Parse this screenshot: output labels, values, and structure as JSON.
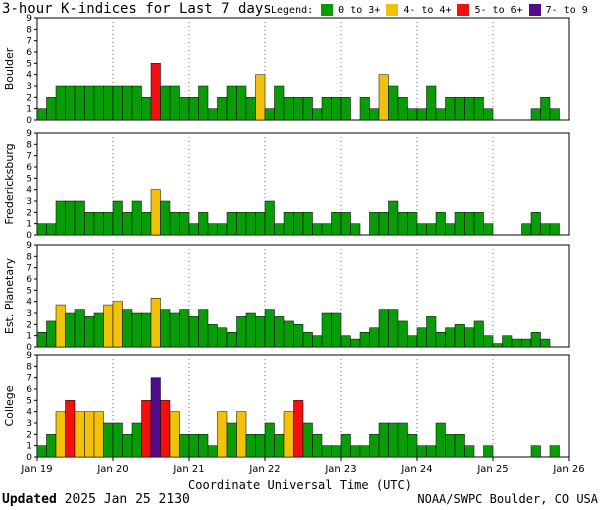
{
  "header": {
    "title": "3-hour K-indices for Last 7 days",
    "legend_label": "Legend:"
  },
  "legend": [
    {
      "label": "0 to 3+",
      "color": "#089c08"
    },
    {
      "label": "4- to 4+",
      "color": "#f2c109"
    },
    {
      "label": "5- to 6+",
      "color": "#f01010"
    },
    {
      "label": "7- to 9",
      "color": "#520b8c"
    }
  ],
  "footer": {
    "updated_label": "Updated",
    "updated_value": " 2025 Jan 25 2130",
    "credit": "NOAA/SWPC Boulder, CO USA"
  },
  "chart_data": {
    "type": "bar",
    "xlabel": "Coordinate Universal Time (UTC)",
    "x_ticks": [
      "Jan 19",
      "Jan 20",
      "Jan 21",
      "Jan 22",
      "Jan 23",
      "Jan 24",
      "Jan 25",
      "Jan 26"
    ],
    "ylim": [
      0,
      9
    ],
    "y_ticks": [
      0,
      1,
      2,
      3,
      4,
      5,
      6,
      7,
      8,
      9
    ],
    "grid": "vertical dotted at day boundaries",
    "bins_per_day": 8,
    "panels": [
      {
        "ylabel": "Boulder",
        "values": [
          1,
          2,
          3,
          3,
          3,
          3,
          3,
          3,
          3,
          3,
          3,
          2,
          5,
          3,
          3,
          2,
          2,
          3,
          1,
          2,
          3,
          3,
          2,
          4,
          1,
          3,
          2,
          2,
          2,
          1,
          2,
          2,
          2,
          0,
          2,
          1,
          4,
          3,
          2,
          1,
          1,
          3,
          1,
          2,
          2,
          2,
          2,
          1,
          0,
          0,
          0,
          0,
          1,
          2,
          1,
          0
        ]
      },
      {
        "ylabel": "Fredericksburg",
        "values": [
          1,
          1,
          3,
          3,
          3,
          2,
          2,
          2,
          3,
          2,
          3,
          2,
          4,
          3,
          2,
          2,
          1,
          2,
          1,
          1,
          2,
          2,
          2,
          2,
          3,
          1,
          2,
          2,
          2,
          1,
          1,
          2,
          2,
          1,
          0,
          2,
          2,
          3,
          2,
          2,
          1,
          1,
          2,
          1,
          2,
          2,
          2,
          1,
          0,
          0,
          0,
          1,
          2,
          1,
          1,
          0
        ]
      },
      {
        "ylabel": "Est. Planetary",
        "values": [
          1.3,
          2.3,
          3.7,
          3,
          3.3,
          2.7,
          3,
          3.7,
          4,
          3.3,
          3,
          3,
          4.3,
          3.3,
          3,
          3.3,
          2.7,
          3.3,
          2,
          1.7,
          1.3,
          2.7,
          3,
          2.7,
          3.3,
          2.7,
          2.3,
          2,
          1.3,
          1,
          3,
          3,
          1,
          0.7,
          1.3,
          1.7,
          3.3,
          3.3,
          2.3,
          1,
          1.7,
          2.7,
          1.3,
          1.7,
          2,
          1.7,
          2.3,
          1,
          0.3,
          1,
          0.7,
          0.7,
          1.3,
          0.7,
          0,
          0
        ]
      },
      {
        "ylabel": "College",
        "values": [
          1,
          2,
          4,
          5,
          4,
          4,
          4,
          3,
          3,
          2,
          3,
          5,
          7,
          5,
          4,
          2,
          2,
          2,
          1,
          4,
          3,
          4,
          2,
          2,
          3,
          2,
          4,
          5,
          3,
          2,
          1,
          1,
          2,
          1,
          1,
          2,
          3,
          3,
          3,
          2,
          1,
          1,
          3,
          2,
          2,
          1,
          0,
          1,
          0,
          0,
          0,
          0,
          1,
          0,
          1,
          0
        ]
      }
    ]
  }
}
